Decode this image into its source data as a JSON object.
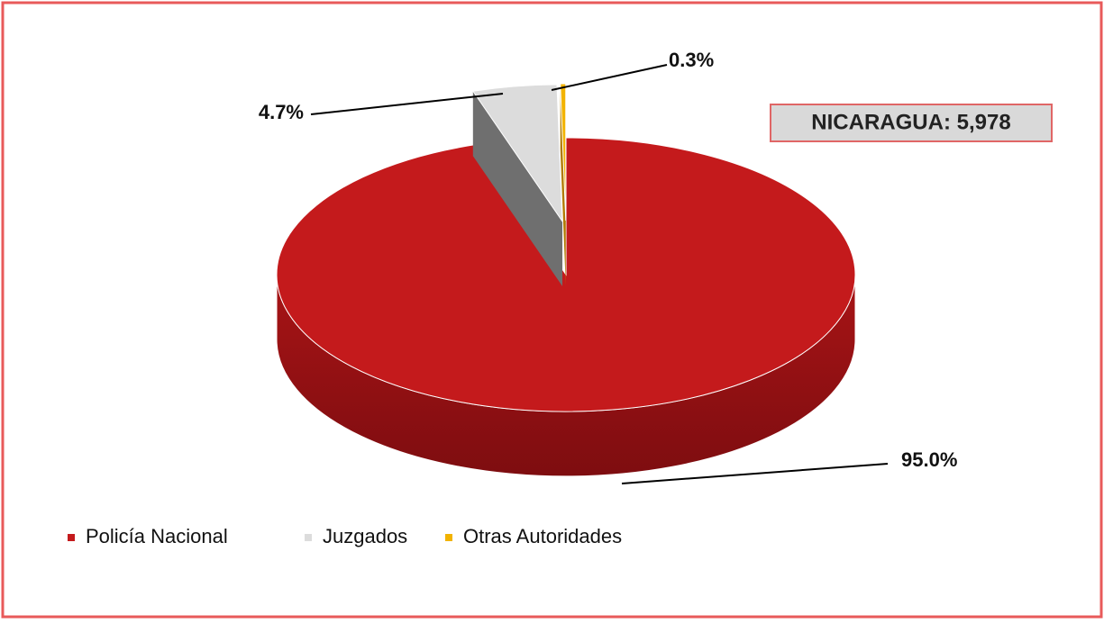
{
  "chart_data": {
    "type": "pie",
    "categories": [
      "Policía Nacional",
      "Juzgados",
      "Otras Autoridades"
    ],
    "values": [
      95.0,
      4.7,
      0.3
    ],
    "value_labels": [
      "95.0%",
      "4.7%",
      "0.3%"
    ],
    "colors": [
      "#c41a1c",
      "#dcdcdc",
      "#f2b300"
    ],
    "annotation": "NICARAGUA: 5,978"
  }
}
